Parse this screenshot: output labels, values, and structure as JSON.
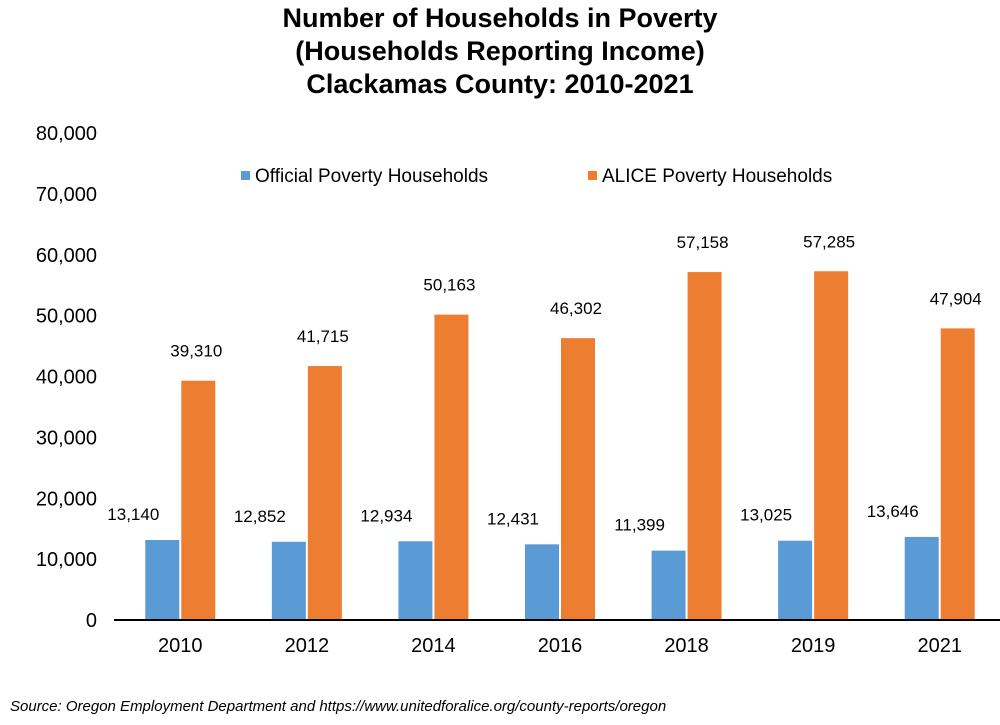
{
  "chart_data": {
    "type": "bar",
    "title": [
      "Number of Households in Poverty",
      "(Households Reporting Income)",
      "Clackamas County: 2010-2021"
    ],
    "xlabel": "",
    "ylabel": "",
    "ylim": [
      0,
      80000
    ],
    "yticks": [
      0,
      10000,
      20000,
      30000,
      40000,
      50000,
      60000,
      70000,
      80000
    ],
    "ytick_labels": [
      "0",
      "10,000",
      "20,000",
      "30,000",
      "40,000",
      "50,000",
      "60,000",
      "70,000",
      "80,000"
    ],
    "grid": false,
    "legend_position": "top-center",
    "categories": [
      "2010",
      "2012",
      "2014",
      "2016",
      "2018",
      "2019",
      "2021"
    ],
    "series": [
      {
        "name": "Official Poverty Households",
        "color": "#5b9bd5",
        "values": [
          13140,
          12852,
          12934,
          12431,
          11399,
          13025,
          13646
        ],
        "labels": [
          "13,140",
          "12,852",
          "12,934",
          "12,431",
          "11,399",
          "13,025",
          "13,646"
        ]
      },
      {
        "name": "ALICE Poverty Households",
        "color": "#ed7d31",
        "values": [
          39310,
          41715,
          50163,
          46302,
          57158,
          57285,
          47904
        ],
        "labels": [
          "39,310",
          "41,715",
          "50,163",
          "46,302",
          "57,158",
          "57,285",
          "47,904"
        ]
      }
    ]
  },
  "source": "Source: Oregon Employment Department and https://www.unitedforalice.org/county-reports/oregon"
}
